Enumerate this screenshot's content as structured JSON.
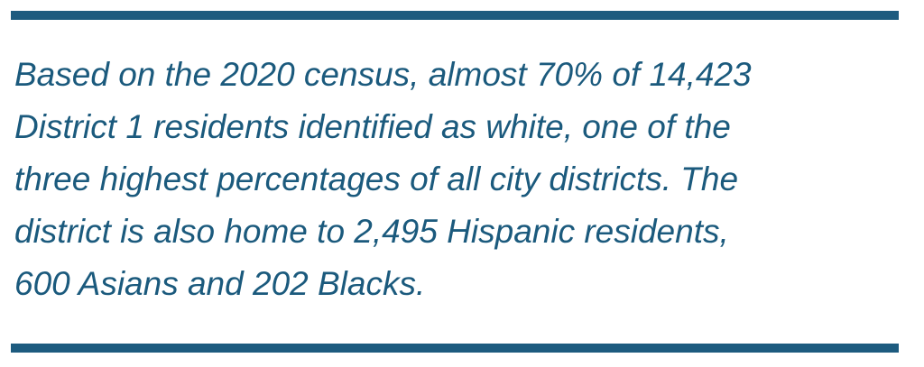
{
  "quote": {
    "lines": [
      "Based on the 2020 census, almost 70% of 14,423",
      "District 1 residents identified as white, one of the",
      "three highest percentages of all city districts. The",
      "district is also home to 2,495 Hispanic residents,",
      "600 Asians and 202 Blacks."
    ]
  }
}
